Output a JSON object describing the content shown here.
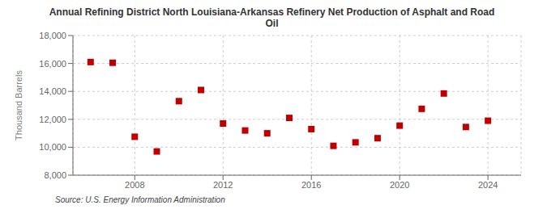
{
  "chart_data": {
    "type": "scatter",
    "title": "Annual Refining District North Louisiana-Arkansas Refinery Net Production of Asphalt and Road\nOil",
    "ylabel": "Thousand Barrels",
    "annotations": [
      "Source: U.S. Energy Information Administration"
    ],
    "x": [
      2006,
      2007,
      2008,
      2009,
      2010,
      2011,
      2012,
      2013,
      2014,
      2015,
      2016,
      2017,
      2018,
      2019,
      2020,
      2021,
      2022,
      2023,
      2024
    ],
    "values": [
      16100,
      16050,
      10750,
      9700,
      13300,
      14100,
      11700,
      11200,
      11000,
      12100,
      11300,
      10100,
      10350,
      10650,
      11550,
      12750,
      13850,
      11450,
      11900
    ],
    "color": "#c00000",
    "marker": "square",
    "xlim": [
      2005.2,
      2025.5
    ],
    "xticks": [
      2008,
      2012,
      2016,
      2020,
      2024
    ],
    "ylim": [
      8000,
      18000
    ],
    "yticks": [
      {
        "value": 8000,
        "label": "8,000"
      },
      {
        "value": 10000,
        "label": "10,000"
      },
      {
        "value": 12000,
        "label": "12,000"
      },
      {
        "value": 14000,
        "label": "14,000"
      },
      {
        "value": 16000,
        "label": "16,000"
      },
      {
        "value": 18000,
        "label": "18,000"
      }
    ],
    "grid": true
  }
}
